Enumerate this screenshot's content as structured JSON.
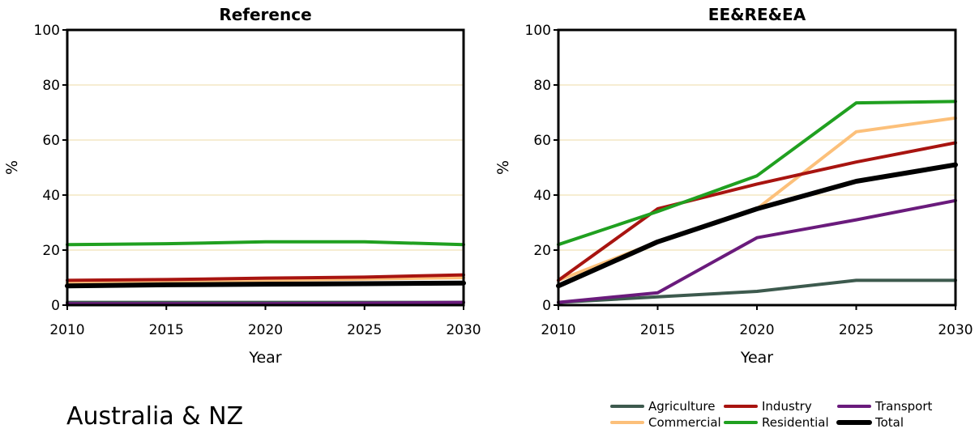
{
  "region_label": "Australia & NZ",
  "legend": [
    {
      "name": "Agriculture",
      "color": "#3d5a4e",
      "width": 4
    },
    {
      "name": "Commercial",
      "color": "#fcc07a",
      "width": 4
    },
    {
      "name": "Industry",
      "color": "#a81410",
      "width": 4
    },
    {
      "name": "Residential",
      "color": "#20a020",
      "width": 4
    },
    {
      "name": "Transport",
      "color": "#6a1b7c",
      "width": 4
    },
    {
      "name": "Total",
      "color": "#000000",
      "width": 6
    }
  ],
  "chart_data": [
    {
      "type": "line",
      "title": "Reference",
      "xlabel": "Year",
      "ylabel": "%",
      "xlim": [
        2010,
        2030
      ],
      "ylim": [
        0,
        100
      ],
      "xticks": [
        2010,
        2015,
        2020,
        2025,
        2030
      ],
      "yticks": [
        0,
        20,
        40,
        60,
        80,
        100
      ],
      "grid": "horizontal",
      "x": [
        2010,
        2015,
        2020,
        2025,
        2030
      ],
      "series": [
        {
          "name": "Agriculture",
          "values": [
            1,
            1,
            1,
            1,
            1
          ]
        },
        {
          "name": "Commercial",
          "values": [
            8,
            8.5,
            9,
            9.5,
            10
          ]
        },
        {
          "name": "Industry",
          "values": [
            9,
            9.3,
            9.8,
            10.2,
            11
          ]
        },
        {
          "name": "Residential",
          "values": [
            22,
            22.3,
            23,
            23,
            22
          ]
        },
        {
          "name": "Transport",
          "values": [
            0.5,
            0.5,
            0.5,
            0.7,
            1
          ]
        },
        {
          "name": "Total",
          "values": [
            7,
            7.4,
            7.6,
            7.8,
            8
          ]
        }
      ]
    },
    {
      "type": "line",
      "title": "EE&RE&EA",
      "xlabel": "Year",
      "ylabel": "%",
      "xlim": [
        2010,
        2030
      ],
      "ylim": [
        0,
        100
      ],
      "xticks": [
        2010,
        2015,
        2020,
        2025,
        2030
      ],
      "yticks": [
        0,
        20,
        40,
        60,
        80,
        100
      ],
      "grid": "horizontal",
      "x": [
        2010,
        2015,
        2020,
        2025,
        2030
      ],
      "series": [
        {
          "name": "Agriculture",
          "values": [
            1,
            3,
            5,
            9,
            9
          ]
        },
        {
          "name": "Commercial",
          "values": [
            9,
            23,
            35,
            63,
            68
          ]
        },
        {
          "name": "Industry",
          "values": [
            9,
            35,
            44,
            52,
            59
          ]
        },
        {
          "name": "Residential",
          "values": [
            22,
            34,
            47,
            73.5,
            74
          ]
        },
        {
          "name": "Transport",
          "values": [
            1,
            4.5,
            24.5,
            31,
            38
          ]
        },
        {
          "name": "Total",
          "values": [
            7,
            23,
            35,
            45,
            51
          ]
        }
      ]
    }
  ]
}
